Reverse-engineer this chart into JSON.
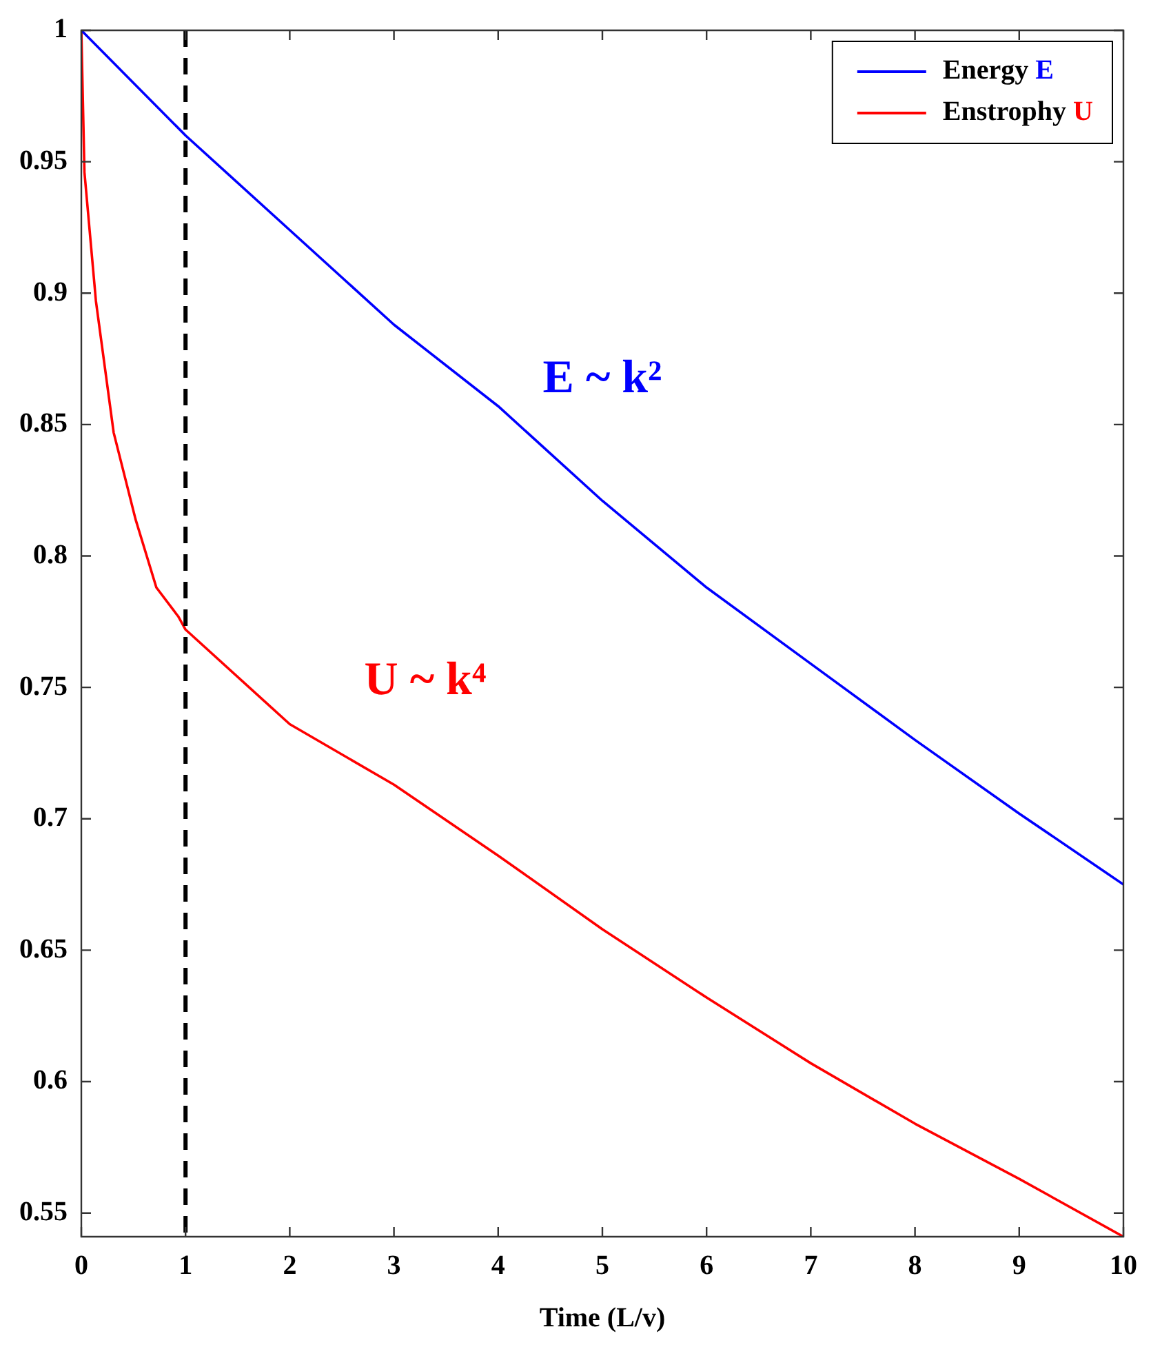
{
  "chart_data": {
    "type": "line",
    "xlabel": "Time (L/v)",
    "xlim": [
      0,
      10
    ],
    "xticks": [
      0,
      1,
      2,
      3,
      4,
      5,
      6,
      7,
      8,
      9,
      10
    ],
    "ylim": [
      0.541,
      1
    ],
    "yticks": [
      0.55,
      0.6,
      0.65,
      0.7,
      0.75,
      0.8,
      0.85,
      0.9,
      0.95,
      1
    ],
    "grid": false,
    "legend": "top right",
    "marker": "none",
    "line_style": "solid",
    "series": [
      {
        "name": "Energy E",
        "color": "#0000ff",
        "x": [
          0,
          1,
          2,
          3,
          4,
          5,
          6,
          7,
          8,
          9,
          10
        ],
        "values": [
          1,
          0.96,
          0.924,
          0.888,
          0.857,
          0.821,
          0.788,
          0.759,
          0.73,
          0.702,
          0.675
        ]
      },
      {
        "name": "Enstrophy U",
        "color": "#ff0000",
        "x": [
          0,
          0.03,
          0.14,
          0.31,
          0.52,
          0.72,
          0.93,
          1,
          2,
          3,
          4,
          5,
          6,
          7,
          8,
          9,
          10
        ],
        "values": [
          1,
          0.946,
          0.897,
          0.847,
          0.814,
          0.788,
          0.777,
          0.772,
          0.736,
          0.713,
          0.686,
          0.658,
          0.632,
          0.607,
          0.584,
          0.563,
          0.541
        ]
      }
    ],
    "ref_lines": [
      {
        "axis": "x",
        "value": 1,
        "color": "#000000",
        "line_style": "dashed"
      }
    ],
    "annotations": [
      "E ~ k²",
      "U ~ k⁴"
    ]
  }
}
